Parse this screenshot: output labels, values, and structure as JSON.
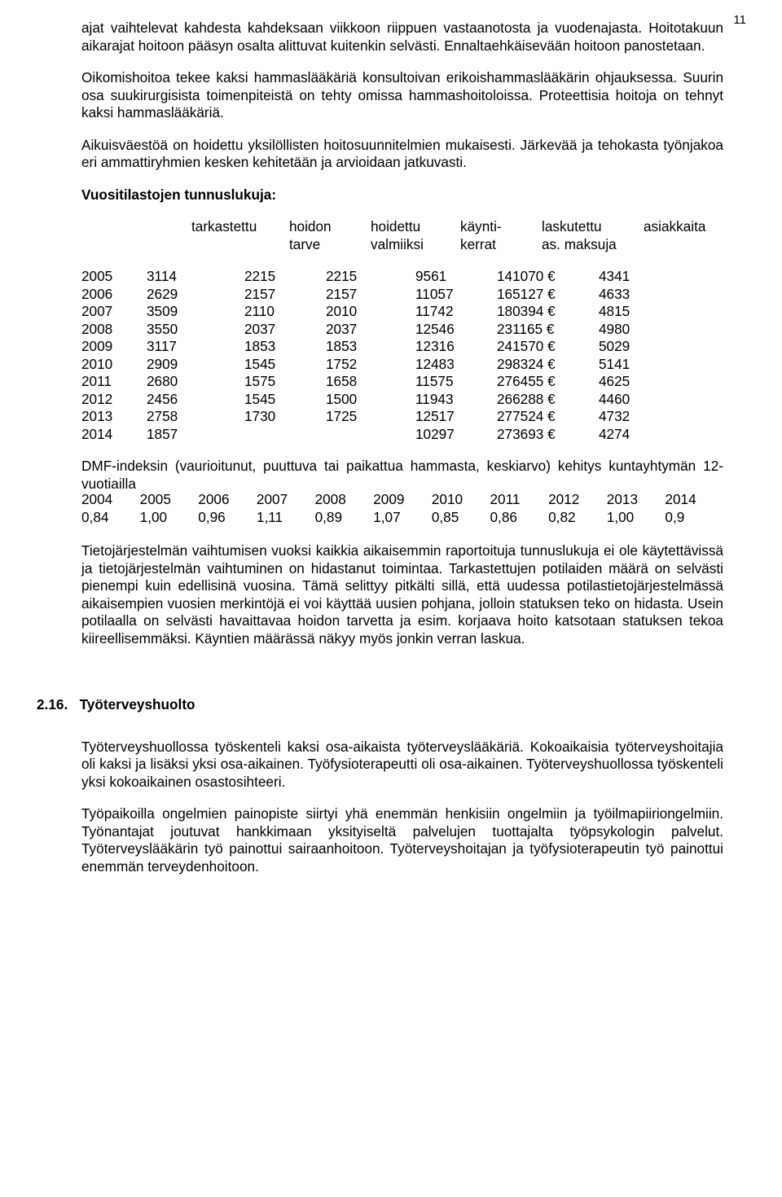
{
  "pageNumber": "11",
  "para1": "ajat vaihtelevat kahdesta kahdeksaan viikkoon riippuen vastaanotosta ja vuodenajasta. Hoitotakuun aikarajat hoitoon pääsyn osalta alittuvat kuitenkin selvästi. Ennaltaehkäisevään hoitoon panostetaan.",
  "para2": "Oikomishoitoa tekee kaksi hammaslääkäriä konsultoivan erikoishammaslääkärin ohjauksessa. Suurin osa suukirurgisista toimenpiteistä on tehty omissa hammashoitoloissa. Proteettisia hoitoja on tehnyt kaksi hammaslääkäriä.",
  "para3": "Aikuisväestöä on hoidettu yksilöllisten hoitosuunnitelmien mukaisesti. Järkevää ja tehokasta työnjakoa eri ammattiryhmien kesken kehitetään ja arvioidaan jatkuvasti.",
  "statsHeading": "Vuositilastojen tunnuslukuja:",
  "table1": {
    "headerTop": [
      "",
      "tarkastettu",
      "hoidon",
      "hoidettu",
      "käynti-",
      "laskutettu",
      "asiakkaita"
    ],
    "headerBottom": [
      "",
      "",
      "tarve",
      "valmiiksi",
      "kerrat",
      "as. maksuja",
      ""
    ],
    "rows": [
      [
        "2005",
        "3114",
        "2215",
        "2215",
        "  9561",
        "141070 €",
        "4341"
      ],
      [
        "2006",
        "2629",
        "2157",
        "2157",
        "11057",
        "165127 €",
        "4633"
      ],
      [
        "2007",
        "3509",
        "2110",
        "2010",
        "11742",
        "180394 €",
        "4815"
      ],
      [
        "2008",
        "3550",
        "2037",
        "2037",
        "12546",
        "231165 €",
        "4980"
      ],
      [
        "2009",
        "3117",
        "1853",
        "1853",
        "12316",
        "241570 €",
        "5029"
      ],
      [
        "2010",
        "2909",
        "1545",
        "1752",
        "12483",
        "298324 €",
        "5141"
      ],
      [
        "2011",
        "2680",
        "1575",
        "1658",
        "11575",
        "276455 €",
        "4625"
      ],
      [
        "2012",
        "2456",
        "1545",
        "1500",
        "11943",
        "266288 €",
        "4460"
      ],
      [
        "2013",
        "2758",
        "1730",
        "1725",
        "12517",
        "277524 €",
        "4732"
      ],
      [
        "2014",
        "1857",
        "",
        "",
        "10297",
        "273693 €",
        "4274"
      ]
    ]
  },
  "dmfIntro": "DMF-indeksin (vaurioitunut, puuttuva tai paikattua hammasta, keskiarvo) kehitys kuntayhtymän 12-vuotiailla",
  "table2": {
    "years": [
      "2004",
      "2005",
      "2006",
      "2007",
      "2008",
      "2009",
      "2010",
      "2011",
      "2012",
      "2013",
      "2014"
    ],
    "values": [
      "0,84",
      "1,00",
      "0,96",
      "1,11",
      "0,89",
      "1,07",
      "0,85",
      "0,86",
      "0,82",
      "1,00",
      "0,9"
    ]
  },
  "para4": "Tietojärjestelmän vaihtumisen vuoksi kaikkia aikaisemmin raportoituja tunnuslukuja ei ole käytettävissä ja tietojärjestelmän vaihtuminen on hidastanut toimintaa. Tarkastettujen potilaiden määrä on selvästi pienempi kuin edellisinä vuosina. Tämä selittyy pitkälti sillä, että uudessa potilastietojärjestelmässä aikaisempien vuosien merkintöjä ei voi käyttää uusien pohjana, jolloin statuksen teko on hidasta. Usein potilaalla on selvästi havaittavaa hoidon tarvetta ja esim. korjaava hoito katsotaan statuksen tekoa kiireellisemmäksi. Käyntien määrässä näkyy myös jonkin verran laskua.",
  "sectionNumber": "2.16.",
  "sectionTitle": "Työterveyshuolto",
  "para5": "Työterveyshuollossa työskenteli kaksi osa-aikaista työterveyslääkäriä. Kokoaikaisia työterveyshoitajia oli kaksi ja lisäksi yksi osa-aikainen. Työfysioterapeutti oli osa-aikainen. Työterveyshuollossa työskenteli yksi kokoaikainen osastosihteeri.",
  "para6": "Työpaikoilla ongelmien painopiste siirtyi yhä enemmän henkisiin ongelmiin ja työilmapiiriongelmiin. Työnantajat joutuvat hankkimaan yksityiseltä palvelujen tuottajalta työpsykologin palvelut. Työterveyslääkärin työ painottui sairaanhoitoon. Työterveyshoitajan ja työfysioterapeutin työ painottui enemmän terveydenhoitoon."
}
